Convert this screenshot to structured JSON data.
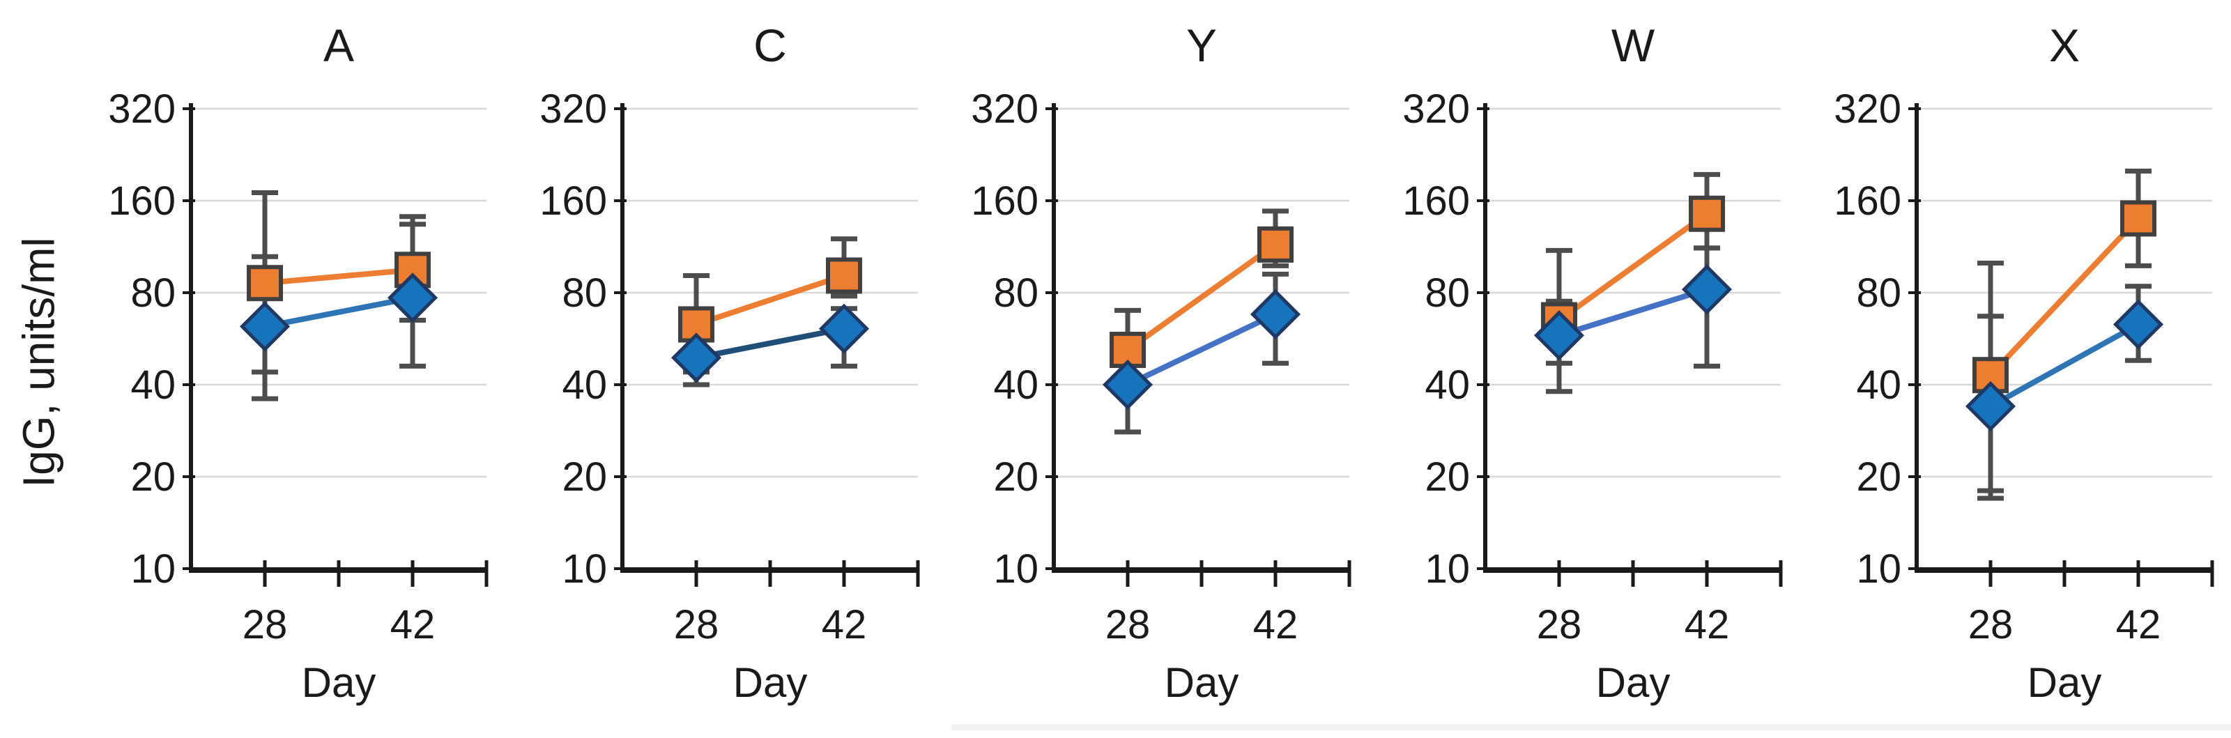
{
  "figure": {
    "y_axis_title": "IgG, units/ml",
    "x_axis_title": "Day",
    "y_tick_labels": [
      "320",
      "160",
      "80",
      "40",
      "20",
      "10"
    ],
    "x_tick_labels": [
      "28",
      "42"
    ],
    "colors": {
      "orange_marker": "#ed7d31",
      "orange_marker_border": "#404040",
      "blue_marker": "#1674bd",
      "blue_marker_border": "#1f3864",
      "error_bar": "#4d4d4d",
      "gridline": "#d9d9d9",
      "axis": "#1a1a1a"
    }
  },
  "chart_data": [
    {
      "type": "line",
      "title": "A",
      "x": [
        28,
        42
      ],
      "xlabel": "Day",
      "ylabel": "IgG, units/ml",
      "y_scale": "log2",
      "ylim": [
        10,
        320
      ],
      "y_ticks": [
        320,
        160,
        80,
        40,
        20,
        10
      ],
      "series": [
        {
          "name": "orange squares",
          "marker": "square",
          "marker_color": "#ed7d31",
          "line_color": "#ed7d31",
          "values": [
            86,
            95
          ],
          "err_low": [
            36,
            65
          ],
          "err_high": [
            170,
            142
          ]
        },
        {
          "name": "blue diamonds",
          "marker": "diamond",
          "marker_color": "#1674bd",
          "line_color": "#2e75b6",
          "values": [
            62,
            77
          ],
          "err_low": [
            44,
            46
          ],
          "err_high": [
            105,
            134
          ]
        }
      ]
    },
    {
      "type": "line",
      "title": "C",
      "x": [
        28,
        42
      ],
      "xlabel": "Day",
      "ylabel": "IgG, units/ml",
      "y_scale": "log2",
      "ylim": [
        10,
        320
      ],
      "y_ticks": [
        320,
        160,
        80,
        40,
        20,
        10
      ],
      "series": [
        {
          "name": "orange squares",
          "marker": "square",
          "marker_color": "#ed7d31",
          "line_color": "#ed7d31",
          "values": [
            63,
            91
          ],
          "err_low": [
            44,
            78
          ],
          "err_high": [
            91,
            120
          ]
        },
        {
          "name": "blue diamonds",
          "marker": "diamond",
          "marker_color": "#1674bd",
          "line_color": "#1f4e79",
          "values": [
            49,
            61
          ],
          "err_low": [
            40,
            46
          ],
          "err_high": [
            58,
            71
          ]
        }
      ]
    },
    {
      "type": "line",
      "title": "Y",
      "x": [
        28,
        42
      ],
      "xlabel": "Day",
      "ylabel": "IgG, units/ml",
      "y_scale": "log2",
      "ylim": [
        10,
        320
      ],
      "y_ticks": [
        320,
        160,
        80,
        40,
        20,
        10
      ],
      "series": [
        {
          "name": "orange squares",
          "marker": "square",
          "marker_color": "#ed7d31",
          "line_color": "#ed7d31",
          "values": [
            52,
            115
          ],
          "err_low": [
            43,
            98
          ],
          "err_high": [
            70,
            148
          ]
        },
        {
          "name": "blue diamonds",
          "marker": "diamond",
          "marker_color": "#1674bd",
          "line_color": "#4472c4",
          "values": [
            40,
            68
          ],
          "err_low": [
            28,
            47
          ],
          "err_high": [
            48,
            92
          ]
        }
      ]
    },
    {
      "type": "line",
      "title": "W",
      "x": [
        28,
        42
      ],
      "xlabel": "Day",
      "ylabel": "IgG, units/ml",
      "y_scale": "log2",
      "ylim": [
        10,
        320
      ],
      "y_ticks": [
        320,
        160,
        80,
        40,
        20,
        10
      ],
      "series": [
        {
          "name": "orange squares",
          "marker": "square",
          "marker_color": "#ed7d31",
          "line_color": "#ed7d31",
          "values": [
            65,
            145
          ],
          "err_low": [
            38,
            112
          ],
          "err_high": [
            110,
            195
          ]
        },
        {
          "name": "blue diamonds",
          "marker": "diamond",
          "marker_color": "#1674bd",
          "line_color": "#4472c4",
          "values": [
            58,
            82
          ],
          "err_low": [
            47,
            46
          ],
          "err_high": [
            75,
            112
          ]
        }
      ]
    },
    {
      "type": "line",
      "title": "X",
      "x": [
        28,
        42
      ],
      "xlabel": "Day",
      "ylabel": "IgG, units/ml",
      "y_scale": "log2",
      "ylim": [
        10,
        320
      ],
      "y_ticks": [
        320,
        160,
        80,
        40,
        20,
        10
      ],
      "series": [
        {
          "name": "orange squares",
          "marker": "square",
          "marker_color": "#ed7d31",
          "line_color": "#ed7d31",
          "values": [
            43,
            140
          ],
          "err_low": [
            18,
            98
          ],
          "err_high": [
            100,
            200
          ]
        },
        {
          "name": "blue diamonds",
          "marker": "diamond",
          "marker_color": "#1674bd",
          "line_color": "#2e75b6",
          "values": [
            34,
            63
          ],
          "err_low": [
            17,
            48
          ],
          "err_high": [
            67,
            84
          ]
        }
      ]
    }
  ]
}
